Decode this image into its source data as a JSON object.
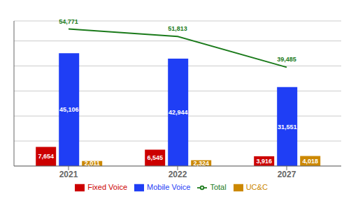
{
  "chart_data": {
    "type": "bar",
    "categories": [
      "2021",
      "2022",
      "2027"
    ],
    "series": [
      {
        "name": "Fixed Voice",
        "type": "bar",
        "color": "#cc0000",
        "values": [
          7654,
          6545,
          3916
        ],
        "value_labels": [
          "7,654",
          "6,545",
          "3,916"
        ]
      },
      {
        "name": "Mobile Voice",
        "type": "bar",
        "color": "#1f3ef5",
        "values": [
          45106,
          42944,
          31551
        ],
        "value_labels": [
          "45,106",
          "42,944",
          "31,551"
        ]
      },
      {
        "name": "UC&C",
        "type": "bar",
        "color": "#cc8800",
        "values": [
          2011,
          2324,
          4018
        ],
        "value_labels": [
          "2,011",
          "2,324",
          "4,018"
        ]
      },
      {
        "name": "Total",
        "type": "line",
        "color": "#1a7a1a",
        "values": [
          54771,
          51813,
          39485
        ],
        "value_labels": [
          "54,771",
          "51,813",
          "39,485"
        ]
      }
    ],
    "ylim": [
      0,
      58000
    ],
    "yticks": [
      10000,
      20000,
      30000,
      40000,
      50000
    ],
    "grid": true,
    "legend": "bottom",
    "data_labels": true,
    "tick_labels": "x"
  }
}
